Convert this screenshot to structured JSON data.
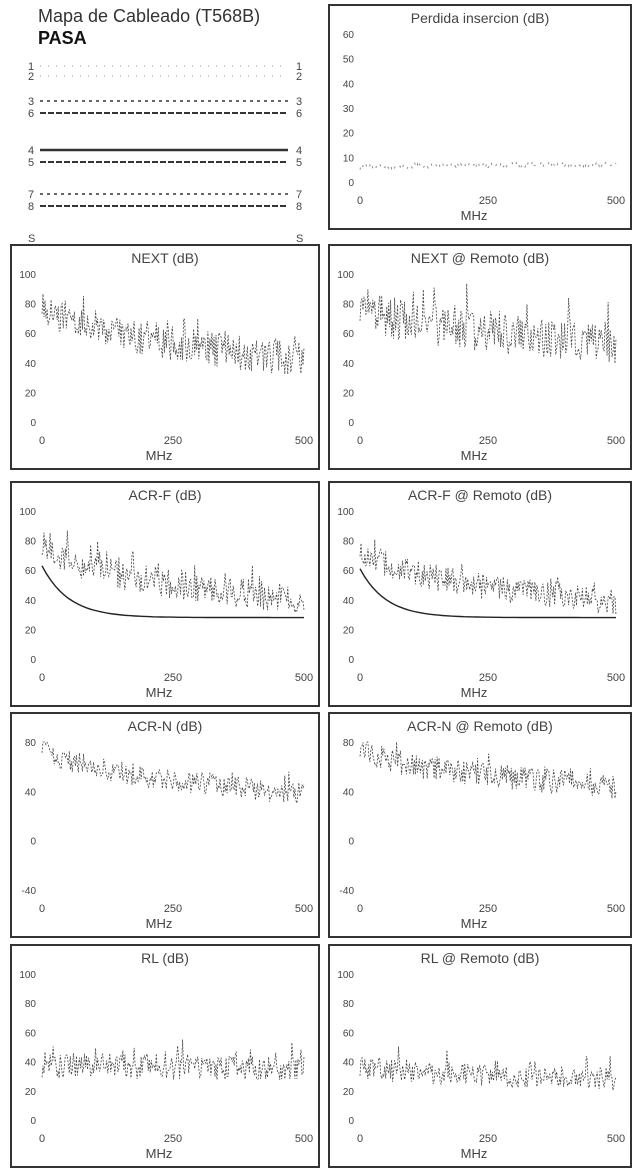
{
  "wire_map": {
    "title": "Mapa de Cableado (T568B)",
    "status": "PASA",
    "pairs": [
      {
        "left": "1",
        "right": "1",
        "style": "dotted-light"
      },
      {
        "left": "2",
        "right": "2",
        "style": "dotted-light"
      },
      {
        "left": "3",
        "right": "3",
        "style": "dashed"
      },
      {
        "left": "6",
        "right": "6",
        "style": "dashed-heavy"
      },
      {
        "left": "4",
        "right": "4",
        "style": "solid"
      },
      {
        "left": "5",
        "right": "5",
        "style": "dashed-heavy"
      },
      {
        "left": "7",
        "right": "7",
        "style": "dashed"
      },
      {
        "left": "8",
        "right": "8",
        "style": "dashed-heavy"
      },
      {
        "left": "S",
        "right": "S",
        "style": "none"
      }
    ]
  },
  "chart_data": [
    {
      "id": "perdida",
      "type": "line",
      "title": "Perdida insercion (dB)",
      "xlabel": "MHz",
      "xlim": [
        0,
        500
      ],
      "ylim": [
        0,
        60
      ],
      "yticks": [
        0,
        10,
        20,
        30,
        40,
        50,
        60
      ],
      "xticks": [
        0,
        250,
        500
      ],
      "style": "sparse",
      "base": 6,
      "end": 7,
      "noise": 1,
      "x_tick_labels": [
        "0",
        "250",
        "500"
      ]
    },
    {
      "id": "next",
      "type": "line",
      "title": "NEXT (dB)",
      "xlabel": "MHz",
      "xlim": [
        0,
        500
      ],
      "ylim": [
        0,
        100
      ],
      "yticks": [
        0,
        20,
        40,
        60,
        80,
        100
      ],
      "xticks": [
        0,
        250,
        500
      ],
      "style": "dense",
      "base": 85,
      "end": 42,
      "noise": 12,
      "x_tick_labels": [
        "0",
        "250",
        "500"
      ]
    },
    {
      "id": "next_remoto",
      "type": "line",
      "title": "NEXT @ Remoto (dB)",
      "xlabel": "MHz",
      "xlim": [
        0,
        500
      ],
      "ylim": [
        0,
        100
      ],
      "yticks": [
        0,
        20,
        40,
        60,
        80,
        100
      ],
      "xticks": [
        0,
        250,
        500
      ],
      "style": "dense",
      "base": 82,
      "end": 52,
      "noise": 14,
      "x_tick_labels": [
        "0",
        "250",
        "500"
      ]
    },
    {
      "id": "acrf",
      "type": "line",
      "title": "ACR-F (dB)",
      "xlabel": "MHz",
      "xlim": [
        0,
        500
      ],
      "ylim": [
        0,
        100
      ],
      "yticks": [
        0,
        20,
        40,
        60,
        80,
        100
      ],
      "xticks": [
        0,
        250,
        500
      ],
      "style": "dense",
      "base": 80,
      "end": 40,
      "noise": 10,
      "limit": true,
      "x_tick_labels": [
        "0",
        "250",
        "500"
      ]
    },
    {
      "id": "acrf_remoto",
      "type": "line",
      "title": "ACR-F @ Remoto (dB)",
      "xlabel": "MHz",
      "xlim": [
        0,
        500
      ],
      "ylim": [
        0,
        100
      ],
      "yticks": [
        0,
        20,
        40,
        60,
        80,
        100
      ],
      "xticks": [
        0,
        250,
        500
      ],
      "style": "dense",
      "base": 78,
      "end": 38,
      "noise": 9,
      "limit": true,
      "x_tick_labels": [
        "0",
        "250",
        "500"
      ]
    },
    {
      "id": "acrn",
      "type": "line",
      "title": "ACR-N (dB)",
      "xlabel": "MHz",
      "xlim": [
        0,
        500
      ],
      "ylim": [
        -40,
        80
      ],
      "yticks": [
        -40,
        0,
        40,
        80
      ],
      "xticks": [
        0,
        250,
        500
      ],
      "style": "dense",
      "base": 80,
      "end": 38,
      "noise": 9,
      "x_tick_labels": [
        "0",
        "250",
        "500"
      ]
    },
    {
      "id": "acrn_remoto",
      "type": "line",
      "title": "ACR-N @ Remoto (dB)",
      "xlabel": "MHz",
      "xlim": [
        0,
        500
      ],
      "ylim": [
        -40,
        80
      ],
      "yticks": [
        -40,
        0,
        40,
        80
      ],
      "xticks": [
        0,
        250,
        500
      ],
      "style": "dense",
      "base": 78,
      "end": 44,
      "noise": 10,
      "x_tick_labels": [
        "0",
        "250",
        "500"
      ]
    },
    {
      "id": "rl",
      "type": "line",
      "title": "RL (dB)",
      "xlabel": "MHz",
      "xlim": [
        0,
        500
      ],
      "ylim": [
        0,
        100
      ],
      "yticks": [
        0,
        20,
        40,
        60,
        80,
        100
      ],
      "xticks": [
        0,
        250,
        500
      ],
      "style": "dense",
      "base": 38,
      "end": 36,
      "noise": 9,
      "x_tick_labels": [
        "0",
        "250",
        "500"
      ]
    },
    {
      "id": "rl_remoto",
      "type": "line",
      "title": "RL @ Remoto (dB)",
      "xlabel": "MHz",
      "xlim": [
        0,
        500
      ],
      "ylim": [
        0,
        100
      ],
      "yticks": [
        0,
        20,
        40,
        60,
        80,
        100
      ],
      "xticks": [
        0,
        250,
        500
      ],
      "style": "dense",
      "base": 38,
      "end": 28,
      "noise": 8,
      "x_tick_labels": [
        "0",
        "250",
        "500"
      ]
    }
  ]
}
